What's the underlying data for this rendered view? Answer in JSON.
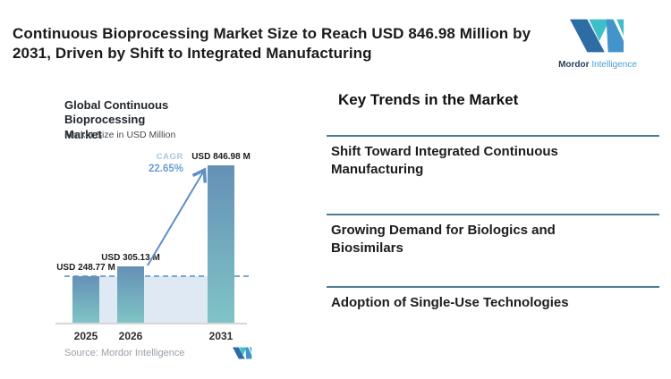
{
  "header": {
    "title": "Continuous Bioprocessing Market Size to Reach USD 846.98 Million by 2031, Driven by Shift to Integrated Manufacturing",
    "brand": {
      "name_bold": "Mordor",
      "name_light": "Intelligence"
    }
  },
  "chart": {
    "title_line1": "Global Continuous Bioprocessing",
    "title_line2": "Market",
    "subtitle": "Market Size in USD Million",
    "cagr_label": "CAGR",
    "cagr_value": "22.65%",
    "source": "Source: Mordor Intelligence"
  },
  "chart_data": {
    "type": "bar",
    "title": "Global Continuous Bioprocessing Market",
    "subtitle": "Market Size in USD Million",
    "categories": [
      "2025",
      "2026",
      "2031"
    ],
    "values": [
      248.77,
      305.13,
      846.98
    ],
    "bar_labels": [
      "USD 248.77 M",
      "USD 305.13 M",
      "USD 846.98 M"
    ],
    "ylabel": "Market Size in USD Million",
    "xlabel": "",
    "ylim": [
      0,
      940
    ],
    "grid": false,
    "legend": false,
    "annotations": {
      "cagr_label": "CAGR",
      "cagr_value": "22.65%",
      "reference_dashed_line_at": 248.77
    },
    "source": "Source: Mordor Intelligence"
  },
  "trends": {
    "heading": "Key Trends in the Market",
    "items": [
      "Shift Toward Integrated Continuous Manufacturing",
      "Growing Demand for Biologics and Biosimilars",
      "Adoption of Single-Use Technologies"
    ]
  },
  "colors": {
    "bar_top": "#6590b6",
    "bar_bottom": "#7fc4c6",
    "fill_light": "#dfe9f4",
    "dashed": "#7aa6d2",
    "arrow": "#5e90c6",
    "separator": "#4d7d96",
    "cagr_label": "#a9c6e2",
    "cagr_value": "#6b9fd2",
    "logo_dark": "#2e6ca6",
    "logo_teal": "#3fbfc9",
    "logo_mid": "#4394cb"
  }
}
